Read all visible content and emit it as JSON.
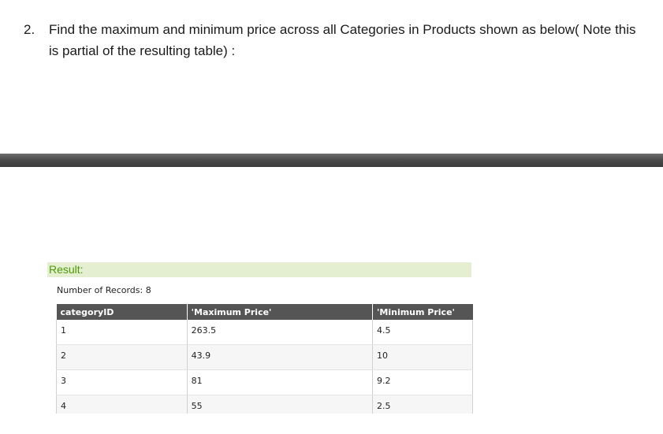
{
  "question": {
    "number": "2.",
    "text": "Find the maximum and minimum price across all Categories in Products shown as below( Note this is partial of the resulting table) :"
  },
  "result": {
    "header": "Result:",
    "record_count_label": "Number of Records: 8",
    "columns": [
      "categoryID",
      "'Maximum Price'",
      "'Minimum Price'"
    ],
    "rows": [
      [
        "1",
        "263.5",
        "4.5"
      ],
      [
        "2",
        "43.9",
        "10"
      ],
      [
        "3",
        "81",
        "9.2"
      ],
      [
        "4",
        "55",
        "2.5"
      ]
    ]
  }
}
